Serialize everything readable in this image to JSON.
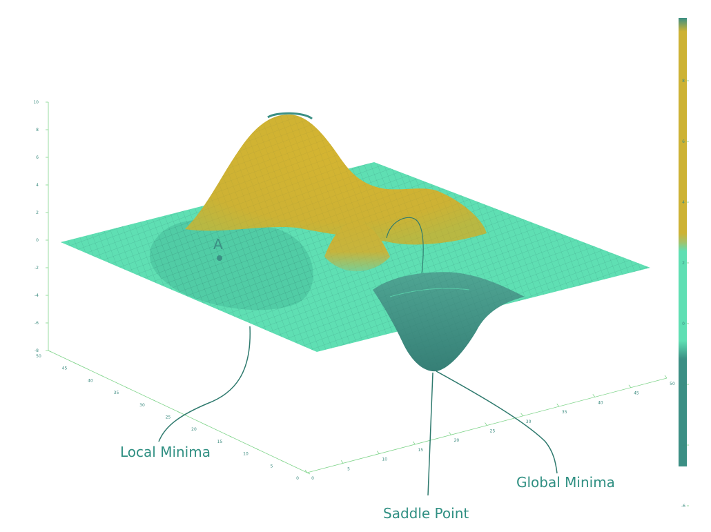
{
  "colors": {
    "teal_light": "#5fdfb3",
    "teal_dark": "#3b8f84",
    "gold": "#cdb234",
    "mesh": "#2f7a6e",
    "axis": "#7fd48a"
  },
  "z_ticks": [
    "10",
    "8",
    "6",
    "4",
    "2",
    "0",
    "-2",
    "-4",
    "-6",
    "-8"
  ],
  "y_ticks": [
    "50",
    "45",
    "40",
    "35",
    "30",
    "25",
    "20",
    "15",
    "10",
    "5",
    "0"
  ],
  "x_ticks": [
    "0",
    "5",
    "10",
    "15",
    "20",
    "25",
    "30",
    "35",
    "40",
    "45",
    "50"
  ],
  "colorbar_ticks": [
    "8",
    "6",
    "4",
    "2",
    "0",
    "-2",
    "-4",
    "-6"
  ],
  "point_marker": "A",
  "callouts": {
    "local_minima": "Local Minima",
    "saddle_point": "Saddle Point",
    "global_minima": "Global Minima"
  }
}
